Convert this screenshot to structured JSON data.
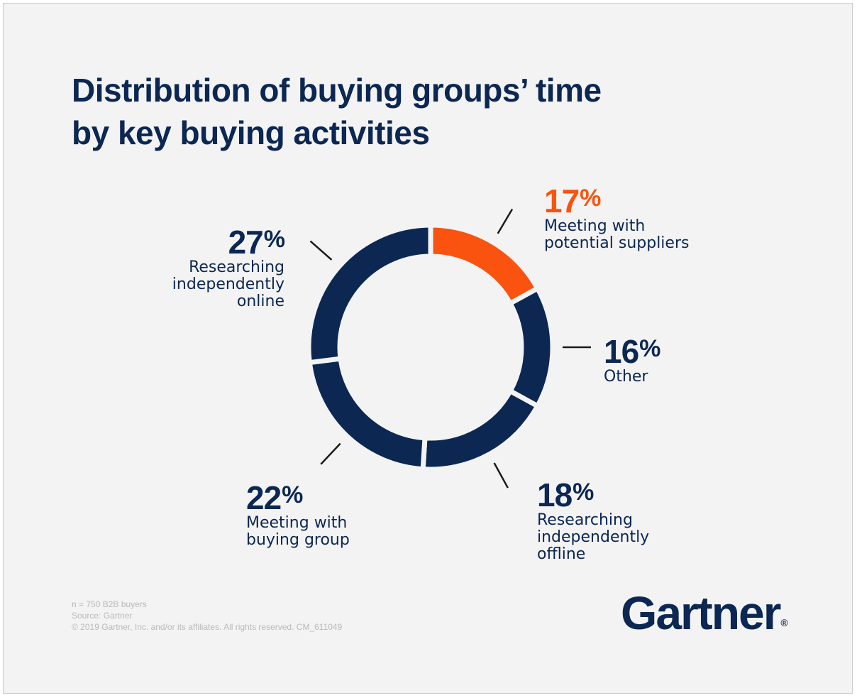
{
  "title": {
    "line1": "Distribution of buying groups’ time",
    "line2": "by key buying activities"
  },
  "colors": {
    "highlight": "#fa5310",
    "primary": "#0b2752",
    "background": "#f3f3f3"
  },
  "chart_data": {
    "type": "pie",
    "style": "donut",
    "title": "Distribution of buying groups’ time by key buying activities",
    "unit": "%",
    "slices": [
      {
        "label": "Meeting with potential suppliers",
        "value": 17,
        "pct_text": "17",
        "desc_lines": [
          "Meeting with",
          "potential suppliers"
        ],
        "color": "#fa5310"
      },
      {
        "label": "Other",
        "value": 16,
        "pct_text": "16",
        "desc_lines": [
          "Other"
        ],
        "color": "#0b2752"
      },
      {
        "label": "Researching independently offline",
        "value": 18,
        "pct_text": "18",
        "desc_lines": [
          "Researching",
          "independently",
          "offline"
        ],
        "color": "#0b2752"
      },
      {
        "label": "Meeting with buying group",
        "value": 22,
        "pct_text": "22",
        "desc_lines": [
          "Meeting with",
          "buying group"
        ],
        "color": "#0b2752"
      },
      {
        "label": "Researching independently online",
        "value": 27,
        "pct_text": "27",
        "desc_lines": [
          "Researching",
          "independently",
          "online"
        ],
        "color": "#0b2752"
      }
    ]
  },
  "footnote": {
    "line1": "n = 750 B2B buyers",
    "line2": "Source: Gartner",
    "line3": "© 2019 Gartner, Inc. and/or its affiliates. All rights reserved. CM_611049"
  },
  "logo": {
    "text": "Gartner",
    "mark": "®"
  }
}
